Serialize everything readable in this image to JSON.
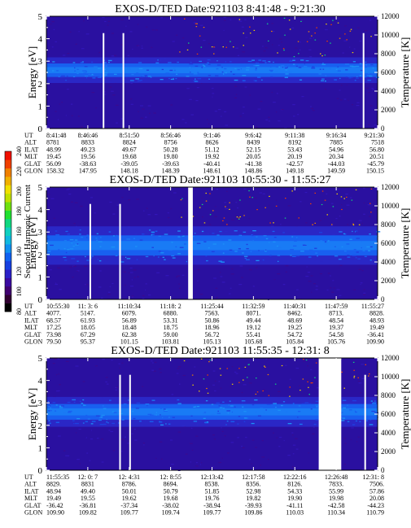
{
  "chart_data": {
    "type": "heatmap",
    "colorbar": {
      "label": "Second Harmonic Current",
      "ticks": [
        "240",
        "220",
        "200",
        "180",
        "160",
        "140",
        "120",
        "100",
        "80"
      ],
      "range": [
        80,
        240
      ],
      "colors": [
        "#000000",
        "#300030",
        "#400070",
        "#3a0aa0",
        "#2a20c8",
        "#1640e0",
        "#1060f0",
        "#1090f0",
        "#10b8e0",
        "#10d0c0",
        "#10d880",
        "#20e030",
        "#70e010",
        "#c0e000",
        "#f0e000",
        "#f0b000",
        "#f08000",
        "#f04000",
        "#f01000"
      ]
    },
    "panels": [
      {
        "title": "EXOS-D/TED   Date:921103  8:41:48 - 9:21:30",
        "ylabel_left": "Energy [eV]",
        "ylabel_right": "Temperature [K]",
        "ylim": [
          0,
          5
        ],
        "yticks": [
          "0",
          "1",
          "2",
          "3",
          "4",
          "5"
        ],
        "y2lim": [
          0,
          12000
        ],
        "y2ticks": [
          "0",
          "2000",
          "4000",
          "6000",
          "8000",
          "10000",
          "12000"
        ],
        "row_labels": [
          "UT",
          "ALT",
          "ILAT",
          "MLT",
          "GLAT",
          "GLON"
        ],
        "columns": [
          [
            "8:41:48",
            "8781",
            "48.99",
            "19.45",
            "56.09",
            "158.32"
          ],
          [
            "8:46:46",
            "8833",
            "49.23",
            "19.56",
            "-38.63",
            "147.95"
          ],
          [
            "8:51:50",
            "8824",
            "49.67",
            "19.68",
            "-39.05",
            "148.18"
          ],
          [
            "8:56:46",
            "8756",
            "50.28",
            "19.80",
            "-39.63",
            "148.39"
          ],
          [
            "9:1:46",
            "8626",
            "51.12",
            "19.92",
            "-40.41",
            "148.61"
          ],
          [
            "9:6:42",
            "8439",
            "52.15",
            "20.05",
            "-41.38",
            "148.86"
          ],
          [
            "9:11:38",
            "8192",
            "53.43",
            "20.19",
            "-42.57",
            "149.18"
          ],
          [
            "9:16:34",
            "7885",
            "54.96",
            "20.34",
            "-44.03",
            "149.59"
          ],
          [
            "9:21:30",
            "7518",
            "56.80",
            "20.51",
            "-45.79",
            "150.15"
          ]
        ],
        "band": {
          "center_ev": 2.6,
          "halfwidth_ev": 0.3
        },
        "gaps": [],
        "spikes": [
          0.17,
          0.23,
          0.955
        ]
      },
      {
        "title": "EXOS-D/TED   Date:921103  10:55:30 - 11:55:27",
        "ylabel_left": "Energy [eV]",
        "ylabel_right": "Temperature [K]",
        "ylim": [
          0,
          5
        ],
        "yticks": [
          "0",
          "1",
          "2",
          "3",
          "4",
          "5"
        ],
        "y2lim": [
          0,
          12000
        ],
        "y2ticks": [
          "0",
          "2000",
          "4000",
          "6000",
          "8000",
          "10000",
          "12000"
        ],
        "row_labels": [
          "UT",
          "ALT",
          "ILAT",
          "MLT",
          "GLAT",
          "GLON"
        ],
        "columns": [
          [
            "10:55:30",
            "4077.",
            "68.57",
            "17.25",
            "73.98",
            "79.50"
          ],
          [
            "11: 3: 6",
            "5147.",
            "61.93",
            "18.05",
            "67.29",
            "95.37"
          ],
          [
            "11:10:34",
            "6079.",
            "56.89",
            "18.48",
            "62.38",
            "101.15"
          ],
          [
            "11:18: 2",
            "6880.",
            "53.31",
            "18.75",
            "59.00",
            "103.81"
          ],
          [
            "11:25:44",
            "7563.",
            "50.86",
            "18.96",
            "56.72",
            "105.13"
          ],
          [
            "11:32:59",
            "8071.",
            "49.44",
            "19.12",
            "55.41",
            "105.68"
          ],
          [
            "11:40:31",
            "8462.",
            "48.69",
            "19.25",
            "54.72",
            "105.84"
          ],
          [
            "11:47:59",
            "8713.",
            "48.54",
            "19.37",
            "54.58",
            "105.76"
          ],
          [
            "11:55:27",
            "8828.",
            "48.93",
            "19.49",
            "-36.41",
            "109.90"
          ]
        ],
        "band": {
          "center_ev": 2.4,
          "halfwidth_ev": 0.45
        },
        "gaps": [
          [
            0.428,
            0.442
          ]
        ],
        "spikes": [
          0.13,
          0.22
        ]
      },
      {
        "title": "EXOS-D/TED   Date:921103  11:55:35 - 12:31: 8",
        "ylabel_left": "Energy [eV]",
        "ylabel_right": "Temperature [K]",
        "ylim": [
          0,
          5
        ],
        "yticks": [
          "0",
          "1",
          "2",
          "3",
          "4",
          "5"
        ],
        "y2lim": [
          0,
          12000
        ],
        "y2ticks": [
          "0",
          "2000",
          "4000",
          "6000",
          "8000",
          "10000",
          "12000"
        ],
        "row_labels": [
          "UT",
          "ALT",
          "ILAT",
          "MLT",
          "GLAT",
          "GLON"
        ],
        "columns": [
          [
            "11:55:35",
            "8829.",
            "48.94",
            "19.49",
            "-36.42",
            "109.90"
          ],
          [
            "12: 0: 7",
            "8831",
            "49.40",
            "19.55",
            "-36.81",
            "109.82"
          ],
          [
            "12: 4:31",
            "8786.",
            "50.01",
            "19.62",
            "-37.34",
            "109.77"
          ],
          [
            "12: 8:55",
            "8694.",
            "50.79",
            "19.68",
            "-38.02",
            "109.74"
          ],
          [
            "12:13:42",
            "8538.",
            "51.85",
            "19.76",
            "-38.94",
            "109.77"
          ],
          [
            "12:17:58",
            "8356.",
            "52.98",
            "19.82",
            "-39.93",
            "109.86"
          ],
          [
            "12:22:16",
            "8126.",
            "54.33",
            "19.90",
            "-41.11",
            "110.03"
          ],
          [
            "12:26:48",
            "7833.",
            "55.99",
            "19.98",
            "-42.58",
            "110.34"
          ],
          [
            "12:31: 8",
            "7506.",
            "57.86",
            "20.08",
            "-44.23",
            "110.79"
          ]
        ],
        "band": {
          "center_ev": 2.6,
          "halfwidth_ev": 0.35
        },
        "gaps": [
          [
            0.822,
            0.89
          ]
        ],
        "spikes": [
          0.22,
          0.25,
          0.96
        ]
      }
    ]
  }
}
